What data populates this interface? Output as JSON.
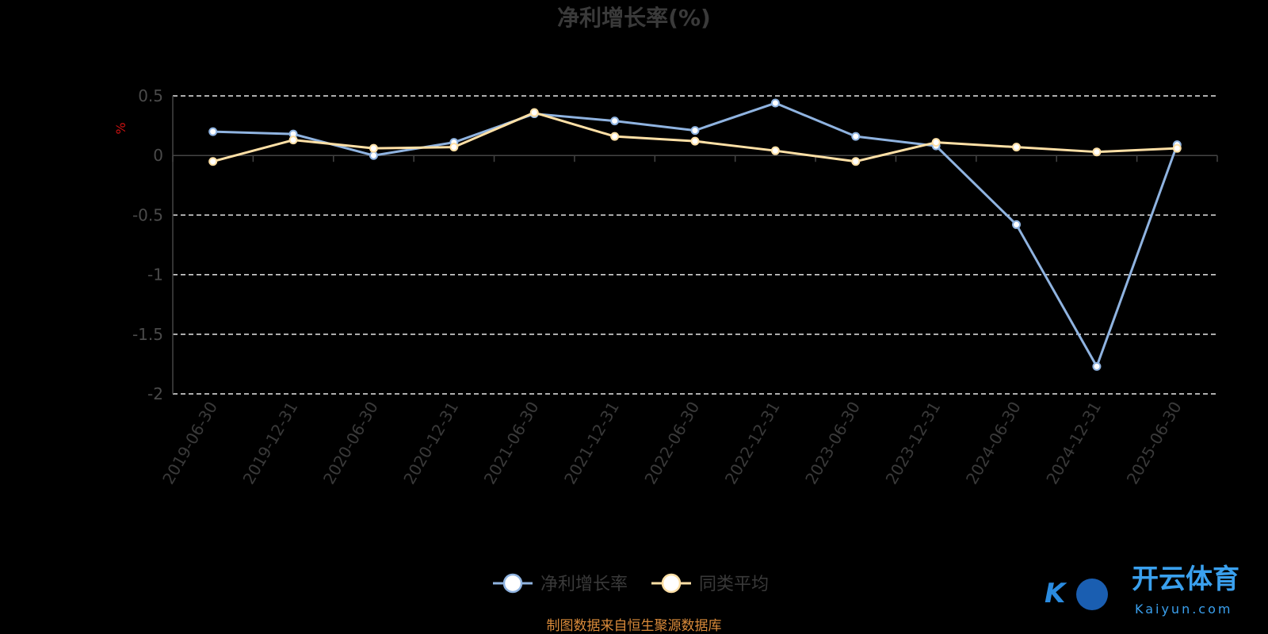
{
  "chart_data": {
    "type": "line",
    "title": "净利增长率(%)",
    "ylabel": "%",
    "categories": [
      "2019-06-30",
      "2019-12-31",
      "2020-06-30",
      "2020-12-31",
      "2021-06-30",
      "2021-12-31",
      "2022-06-30",
      "2022-12-31",
      "2023-06-30",
      "2023-12-31",
      "2024-06-30",
      "2024-12-31",
      "2025-06-30"
    ],
    "series": [
      {
        "name": "净利增长率",
        "color": "#8fb3e0",
        "values": [
          0.2,
          0.18,
          0.0,
          0.11,
          0.35,
          0.29,
          0.21,
          0.44,
          0.16,
          0.08,
          -0.58,
          -1.77,
          0.09
        ]
      },
      {
        "name": "同类平均",
        "color": "#ffe0a6",
        "values": [
          -0.05,
          0.13,
          0.06,
          0.07,
          0.36,
          0.16,
          0.12,
          0.04,
          -0.05,
          0.11,
          0.07,
          0.03,
          0.06
        ]
      }
    ],
    "ylim": [
      -2,
      0.5
    ],
    "yticks": [
      "0.5",
      "0",
      "-0.5",
      "-1",
      "-1.5",
      "-2"
    ],
    "grid": true,
    "legend_position": "bottom-center"
  },
  "source": "制图数据来自恒生聚源数据库",
  "watermark": {
    "mark": "K",
    "name_cn": "开云体育",
    "name_en": "Kaiyun.com"
  }
}
